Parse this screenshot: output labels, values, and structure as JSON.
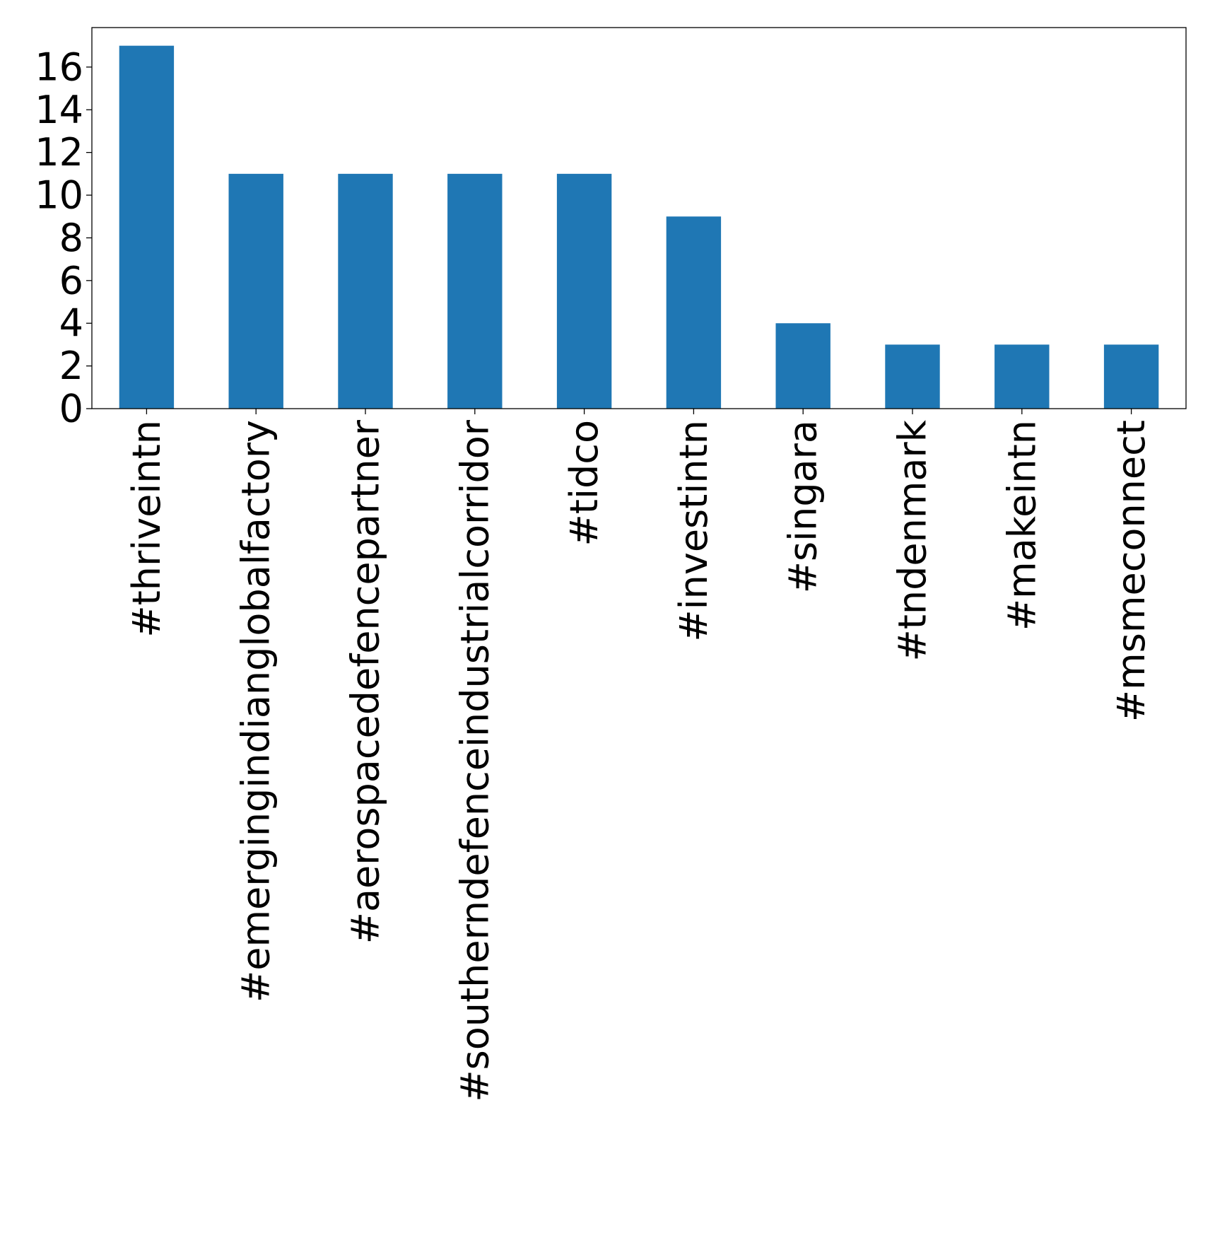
{
  "chart_data": {
    "type": "bar",
    "title": "",
    "xlabel": "",
    "ylabel": "",
    "categories": [
      "#thriveintn",
      "#emergingindianglobalfactory",
      "#aerospacedefencepartner",
      "#southerndefenceindustrialcorridor",
      "#tidco",
      "#investintn",
      "#singara",
      "#tndenmark",
      "#makeintn",
      "#msmeconnect"
    ],
    "values": [
      17,
      11,
      11,
      11,
      11,
      9,
      4,
      3,
      3,
      3
    ],
    "ylim": [
      0,
      17.85
    ],
    "yticks": [
      0,
      2,
      4,
      6,
      8,
      10,
      12,
      14,
      16
    ],
    "grid": false,
    "legend": "none",
    "bar_color": "#1f77b4"
  }
}
